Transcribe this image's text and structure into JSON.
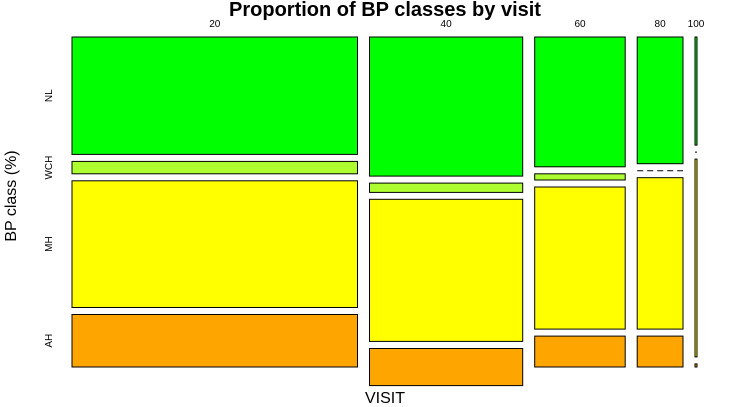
{
  "chart_data": {
    "type": "mosaic",
    "title": "Proportion of BP classes by visit",
    "xlabel": "VISIT",
    "ylabel": "BP class (%)",
    "x_categories": [
      "20",
      "40",
      "60",
      "80",
      "100"
    ],
    "x_widths": [
      287,
      154,
      91,
      46,
      2
    ],
    "y_categories": [
      "NL",
      "WCH",
      "MH",
      "AH"
    ],
    "proportions": [
      [
        0.38,
        0.04,
        0.41,
        0.17
      ],
      [
        0.45,
        0.03,
        0.46,
        0.12
      ],
      [
        0.42,
        0.02,
        0.46,
        0.1
      ],
      [
        0.41,
        0.0,
        0.49,
        0.1
      ],
      [
        0.35,
        0.0,
        0.64,
        0.01
      ]
    ],
    "colors": {
      "NL": "#00ff00",
      "WCH": "#adff2f",
      "MH": "#ffff00",
      "AH": "#ffa500"
    }
  }
}
